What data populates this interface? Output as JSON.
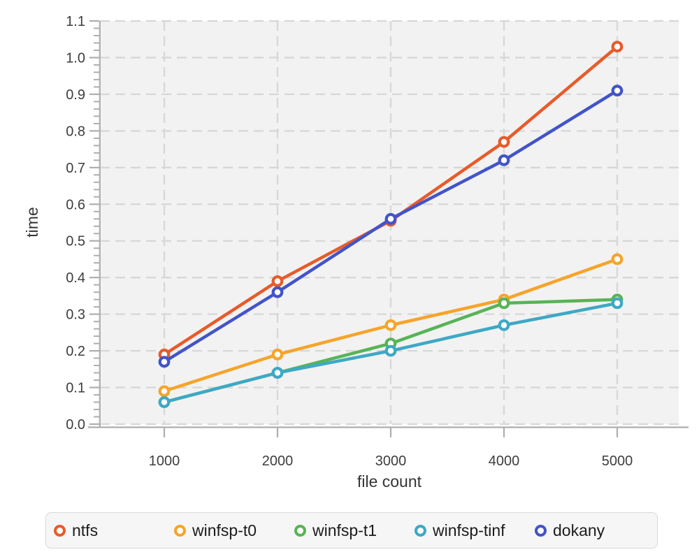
{
  "chart_data": {
    "type": "line",
    "title": "",
    "xlabel": "file count",
    "ylabel": "time",
    "x": [
      1000,
      2000,
      3000,
      4000,
      5000
    ],
    "x_tick_labels": [
      "1000",
      "2000",
      "3000",
      "4000",
      "5000"
    ],
    "y_tick_labels": [
      "0.0",
      "0.1",
      "0.2",
      "0.3",
      "0.4",
      "0.5",
      "0.6",
      "0.7",
      "0.8",
      "0.9",
      "1.0",
      "1.1"
    ],
    "ylim": [
      0,
      1.1
    ],
    "grid": true,
    "legend_position": "bottom",
    "series": [
      {
        "name": "ntfs",
        "color": "#e75b2b",
        "values": [
          0.19,
          0.39,
          0.555,
          0.77,
          1.03
        ]
      },
      {
        "name": "winfsp-t0",
        "color": "#f7a429",
        "values": [
          0.09,
          0.19,
          0.27,
          0.34,
          0.45
        ]
      },
      {
        "name": "winfsp-t1",
        "color": "#57b457",
        "values": [
          0.06,
          0.14,
          0.22,
          0.33,
          0.34
        ]
      },
      {
        "name": "winfsp-tinf",
        "color": "#3ea8c5",
        "values": [
          0.06,
          0.14,
          0.2,
          0.27,
          0.33
        ]
      },
      {
        "name": "dokany",
        "color": "#4254c9",
        "values": [
          0.17,
          0.36,
          0.56,
          0.72,
          0.91
        ]
      }
    ],
    "style": {
      "panel_bg": "#f2f2f2",
      "grid_color": "#d7d7d7",
      "axis_color": "#aeaeae"
    }
  }
}
